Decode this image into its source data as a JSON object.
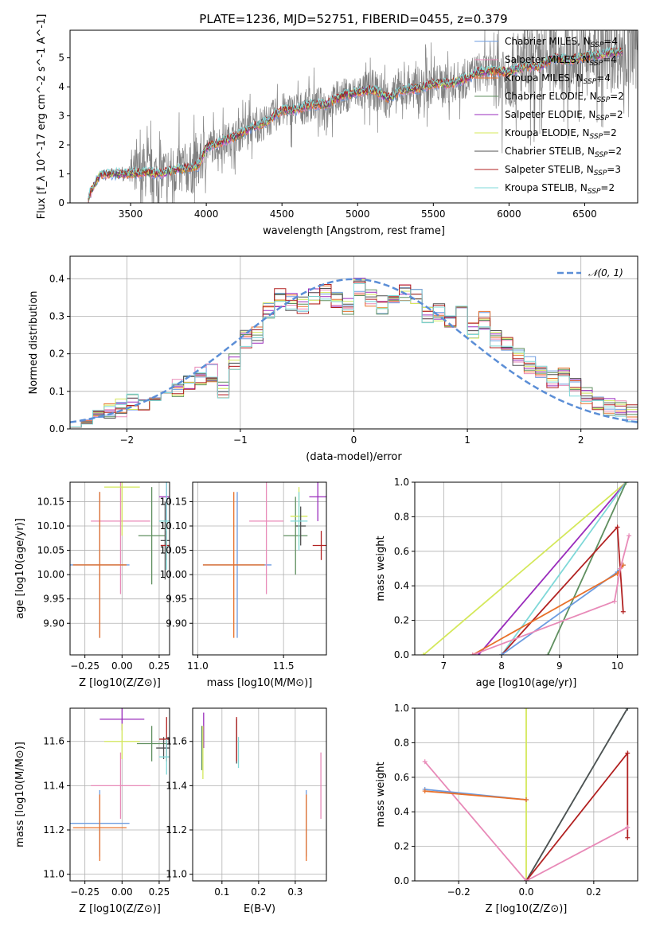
{
  "figure_title": "PLATE=1236, MJD=52751, FIBERID=0455, z=0.379",
  "colors": {
    "chabrier_miles": "#6d9ce0",
    "salpeter_miles": "#e88ab8",
    "kroupa_miles": "#e8702a",
    "chabrier_elodie": "#5f8f5f",
    "salpeter_elodie": "#9a2cbc",
    "kroupa_elodie": "#d4e85a",
    "chabrier_stelib": "#505050",
    "salpeter_stelib": "#b22222",
    "kroupa_stelib": "#7fd8d8",
    "data": "#808080",
    "normal": "#5b8ed6"
  },
  "chart_data": [
    {
      "id": "spectrum",
      "type": "line",
      "title": "PLATE=1236, MJD=52751, FIBERID=0455, z=0.379",
      "xlabel": "wavelength [Angstrom, rest frame]",
      "ylabel": "Flux [f_λ 10^-17 erg cm^-2 s^-1 A^-1]",
      "xlim": [
        3100,
        6850
      ],
      "ylim": [
        0,
        5.95
      ],
      "xticks": [
        3500,
        4000,
        4500,
        5000,
        5500,
        6000,
        6500
      ],
      "yticks": [
        0,
        1,
        2,
        3,
        4,
        5
      ],
      "legend_position": "right",
      "legend": [
        {
          "label": "Chabrier MILES, N_SSP=4",
          "color_key": "chabrier_miles"
        },
        {
          "label": "Salpeter MILES, N_SSP=4",
          "color_key": "salpeter_miles"
        },
        {
          "label": "Kroupa MILES, N_SSP=4",
          "color_key": "kroupa_miles"
        },
        {
          "label": "Chabrier ELODIE, N_SSP=2",
          "color_key": "chabrier_elodie"
        },
        {
          "label": "Salpeter ELODIE, N_SSP=2",
          "color_key": "salpeter_elodie"
        },
        {
          "label": "Kroupa ELODIE, N_SSP=2",
          "color_key": "kroupa_elodie"
        },
        {
          "label": "Chabrier STELIB, N_SSP=2",
          "color_key": "chabrier_stelib"
        },
        {
          "label": "Salpeter STELIB, N_SSP=3",
          "color_key": "salpeter_stelib"
        },
        {
          "label": "Kroupa STELIB, N_SSP=2",
          "color_key": "kroupa_stelib"
        }
      ],
      "model_continuum": {
        "x": [
          3220,
          3300,
          3400,
          3500,
          3600,
          3700,
          3800,
          3900,
          3950,
          4000,
          4100,
          4200,
          4300,
          4400,
          4500,
          4600,
          4700,
          4800,
          4900,
          5000,
          5100,
          5200,
          5300,
          5400,
          5500,
          5600,
          5700,
          5800,
          5900,
          6000,
          6100,
          6200,
          6300,
          6400,
          6500,
          6600,
          6700
        ],
        "y": [
          0.2,
          1.0,
          1.0,
          1.0,
          1.05,
          1.0,
          1.15,
          1.2,
          1.3,
          1.9,
          2.1,
          2.3,
          2.6,
          2.8,
          3.2,
          3.2,
          3.4,
          3.4,
          3.7,
          3.8,
          3.9,
          3.6,
          3.9,
          3.95,
          4.1,
          4.1,
          4.25,
          4.5,
          4.55,
          4.5,
          4.7,
          4.7,
          5.0,
          4.9,
          5.05,
          5.1,
          5.2
        ]
      }
    },
    {
      "id": "residual_hist",
      "type": "histogram",
      "xlabel": "(data-model)/error",
      "ylabel": "Normed distribution",
      "xlim": [
        -2.5,
        2.5
      ],
      "ylim": [
        0,
        0.46
      ],
      "xticks": [
        -2,
        -1,
        0,
        1,
        2
      ],
      "yticks": [
        0.0,
        0.1,
        0.2,
        0.3,
        0.4
      ],
      "grid": true,
      "legend": [
        {
          "label": "𝒩(0, 1)",
          "color_key": "normal"
        }
      ],
      "legend_position": "top-right",
      "bin_edges": [
        -2.5,
        -2.4,
        -2.3,
        -2.2,
        -2.1,
        -2.0,
        -1.9,
        -1.8,
        -1.7,
        -1.6,
        -1.5,
        -1.4,
        -1.3,
        -1.2,
        -1.1,
        -1.0,
        -0.9,
        -0.8,
        -0.7,
        -0.6,
        -0.5,
        -0.4,
        -0.3,
        -0.2,
        -0.1,
        0.0,
        0.1,
        0.2,
        0.3,
        0.4,
        0.5,
        0.6,
        0.7,
        0.8,
        0.9,
        1.0,
        1.1,
        1.2,
        1.3,
        1.4,
        1.5,
        1.6,
        1.7,
        1.8,
        1.9,
        2.0,
        2.1,
        2.2,
        2.3,
        2.4,
        2.5
      ],
      "representative_counts": [
        0.03,
        0.035,
        0.04,
        0.045,
        0.055,
        0.07,
        0.065,
        0.08,
        0.09,
        0.11,
        0.13,
        0.14,
        0.15,
        0.1,
        0.18,
        0.24,
        0.25,
        0.32,
        0.35,
        0.34,
        0.33,
        0.35,
        0.36,
        0.34,
        0.33,
        0.38,
        0.35,
        0.33,
        0.36,
        0.36,
        0.35,
        0.3,
        0.31,
        0.28,
        0.33,
        0.26,
        0.29,
        0.24,
        0.23,
        0.19,
        0.17,
        0.15,
        0.13,
        0.14,
        0.11,
        0.09,
        0.07,
        0.06,
        0.05,
        0.04
      ],
      "normal_curve": {
        "mu": 0,
        "sigma": 1
      }
    },
    {
      "id": "age_vs_Z",
      "type": "errorbar",
      "xlabel": "Z [log10(Z/Z⊙)]",
      "ylabel": "age  [log10(age/yr)]",
      "xlim": [
        -0.35,
        0.32
      ],
      "ylim": [
        9.835,
        10.19
      ],
      "xticks": [
        -0.25,
        0.0,
        0.25
      ],
      "yticks": [
        9.9,
        9.95,
        10.0,
        10.05,
        10.1,
        10.15
      ],
      "grid": true,
      "points": [
        {
          "key": "chabrier_miles",
          "x": -0.15,
          "y": 10.02,
          "xerr": 0.2,
          "yerr": 0.15
        },
        {
          "key": "salpeter_miles",
          "x": -0.01,
          "y": 10.11,
          "xerr": 0.2,
          "yerr": 0.15
        },
        {
          "key": "kroupa_miles",
          "x": -0.15,
          "y": 10.02,
          "xerr": 0.18,
          "yerr": 0.15
        },
        {
          "key": "chabrier_elodie",
          "x": 0.2,
          "y": 10.08,
          "xerr": 0.09,
          "yerr": 0.1
        },
        {
          "key": "salpeter_elodie",
          "x": 0.3,
          "y": 10.16,
          "xerr": 0.05,
          "yerr": 0.05
        },
        {
          "key": "kroupa_elodie",
          "x": 0.0,
          "y": 10.18,
          "xerr": 0.12,
          "yerr": 0.1
        },
        {
          "key": "chabrier_stelib",
          "x": 0.29,
          "y": 10.07,
          "xerr": 0.03,
          "yerr": 0.08
        },
        {
          "key": "salpeter_stelib",
          "x": 0.3,
          "y": 10.06,
          "xerr": 0.04,
          "yerr": 0.03
        },
        {
          "key": "kroupa_stelib",
          "x": 0.3,
          "y": 10.11,
          "xerr": 0.05,
          "yerr": 0.1
        }
      ]
    },
    {
      "id": "age_vs_mass",
      "type": "errorbar",
      "xlabel": "mass [log10(M/M⊙)]",
      "ylabel": "",
      "xlim": [
        10.97,
        11.75
      ],
      "ylim": [
        9.835,
        10.19
      ],
      "xticks": [
        11.0,
        11.5
      ],
      "yticks": [
        9.9,
        9.95,
        10.0,
        10.05,
        10.1,
        10.15
      ],
      "grid": true,
      "points": [
        {
          "key": "chabrier_miles",
          "x": 11.23,
          "y": 10.02,
          "xerr": 0.2,
          "yerr": 0.15
        },
        {
          "key": "salpeter_miles",
          "x": 11.4,
          "y": 10.11,
          "xerr": 0.1,
          "yerr": 0.15
        },
        {
          "key": "kroupa_miles",
          "x": 11.21,
          "y": 10.02,
          "xerr": 0.18,
          "yerr": 0.15
        },
        {
          "key": "chabrier_elodie",
          "x": 11.57,
          "y": 10.08,
          "xerr": 0.07,
          "yerr": 0.08
        },
        {
          "key": "salpeter_elodie",
          "x": 11.7,
          "y": 10.16,
          "xerr": 0.05,
          "yerr": 0.05
        },
        {
          "key": "kroupa_elodie",
          "x": 11.59,
          "y": 10.12,
          "xerr": 0.05,
          "yerr": 0.06
        },
        {
          "key": "chabrier_stelib",
          "x": 11.6,
          "y": 10.1,
          "xerr": 0.03,
          "yerr": 0.04
        },
        {
          "key": "salpeter_stelib",
          "x": 11.72,
          "y": 10.06,
          "xerr": 0.05,
          "yerr": 0.03
        },
        {
          "key": "kroupa_stelib",
          "x": 11.59,
          "y": 10.11,
          "xerr": 0.05,
          "yerr": 0.06
        }
      ]
    },
    {
      "id": "massweight_vs_age",
      "type": "line",
      "xlabel": "age  [log10(age/yr)]",
      "ylabel": "mass weight",
      "xlim": [
        6.5,
        10.35
      ],
      "ylim": [
        0,
        1.0
      ],
      "xticks": [
        7,
        8,
        9,
        10
      ],
      "yticks": [
        0.0,
        0.2,
        0.4,
        0.6,
        0.8,
        1.0
      ],
      "grid": true,
      "series": [
        {
          "key": "kroupa_elodie",
          "x": [
            6.65,
            10.15
          ],
          "y": [
            0.0,
            1.0
          ]
        },
        {
          "key": "salpeter_elodie",
          "x": [
            7.6,
            10.15
          ],
          "y": [
            0.0,
            1.0
          ]
        },
        {
          "key": "kroupa_stelib",
          "x": [
            8.0,
            10.15
          ],
          "y": [
            0.0,
            1.0
          ]
        },
        {
          "key": "chabrier_elodie",
          "x": [
            8.8,
            10.15
          ],
          "y": [
            0.0,
            1.0
          ]
        },
        {
          "key": "salpeter_stelib",
          "x": [
            8.0,
            10.0,
            10.1
          ],
          "y": [
            0.0,
            0.74,
            0.25
          ]
        },
        {
          "key": "chabrier_miles",
          "x": [
            8.0,
            10.0,
            10.1
          ],
          "y": [
            0.0,
            0.48,
            0.52
          ]
        },
        {
          "key": "kroupa_miles",
          "x": [
            7.5,
            10.0,
            10.1
          ],
          "y": [
            0.0,
            0.47,
            0.52
          ]
        },
        {
          "key": "salpeter_miles",
          "x": [
            7.5,
            9.95,
            10.05,
            10.2
          ],
          "y": [
            0.0,
            0.31,
            0.5,
            0.69
          ]
        }
      ]
    },
    {
      "id": "mass_vs_Z",
      "type": "errorbar",
      "xlabel": "Z [log10(Z/Z⊙)]",
      "ylabel": "mass [log10(M/M⊙)]",
      "xlim": [
        -0.35,
        0.32
      ],
      "ylim": [
        10.97,
        11.75
      ],
      "xticks": [
        -0.25,
        0.0,
        0.25
      ],
      "yticks": [
        11.0,
        11.2,
        11.4,
        11.6
      ],
      "grid": true,
      "points": [
        {
          "key": "chabrier_miles",
          "x": -0.15,
          "y": 11.23,
          "xerr": 0.2,
          "yerr": 0.15
        },
        {
          "key": "salpeter_miles",
          "x": -0.01,
          "y": 11.4,
          "xerr": 0.2,
          "yerr": 0.15
        },
        {
          "key": "kroupa_miles",
          "x": -0.15,
          "y": 11.21,
          "xerr": 0.18,
          "yerr": 0.15
        },
        {
          "key": "chabrier_elodie",
          "x": 0.2,
          "y": 11.59,
          "xerr": 0.1,
          "yerr": 0.08
        },
        {
          "key": "salpeter_elodie",
          "x": 0.0,
          "y": 11.7,
          "xerr": 0.15,
          "yerr": 0.05
        },
        {
          "key": "kroupa_elodie",
          "x": 0.0,
          "y": 11.6,
          "xerr": 0.12,
          "yerr": 0.08
        },
        {
          "key": "chabrier_stelib",
          "x": 0.28,
          "y": 11.57,
          "xerr": 0.05,
          "yerr": 0.05
        },
        {
          "key": "salpeter_stelib",
          "x": 0.3,
          "y": 11.61,
          "xerr": 0.05,
          "yerr": 0.1
        },
        {
          "key": "kroupa_stelib",
          "x": 0.3,
          "y": 11.53,
          "xerr": 0.05,
          "yerr": 0.08
        }
      ]
    },
    {
      "id": "mass_vs_ebv",
      "type": "errorbar",
      "xlabel": "E(B-V)",
      "ylabel": "",
      "xlim": [
        0.02,
        0.385
      ],
      "ylim": [
        10.97,
        11.75
      ],
      "xticks": [
        0.1,
        0.2,
        0.3
      ],
      "yticks": [
        11.0,
        11.2,
        11.4,
        11.6
      ],
      "grid": true,
      "points": [
        {
          "key": "chabrier_miles",
          "x": 0.33,
          "y": 11.23,
          "xerr": 0,
          "yerr": 0.15
        },
        {
          "key": "salpeter_miles",
          "x": 0.37,
          "y": 11.4,
          "xerr": 0,
          "yerr": 0.15
        },
        {
          "key": "kroupa_miles",
          "x": 0.33,
          "y": 11.21,
          "xerr": 0,
          "yerr": 0.15
        },
        {
          "key": "chabrier_elodie",
          "x": 0.045,
          "y": 11.57,
          "xerr": 0,
          "yerr": 0.1
        },
        {
          "key": "salpeter_elodie",
          "x": 0.05,
          "y": 11.65,
          "xerr": 0,
          "yerr": 0.08
        },
        {
          "key": "kroupa_elodie",
          "x": 0.048,
          "y": 11.55,
          "xerr": 0,
          "yerr": 0.12
        },
        {
          "key": "chabrier_stelib",
          "x": 0.14,
          "y": 11.6,
          "xerr": 0,
          "yerr": 0.1
        },
        {
          "key": "salpeter_stelib",
          "x": 0.14,
          "y": 11.61,
          "xerr": 0,
          "yerr": 0.1
        },
        {
          "key": "kroupa_stelib",
          "x": 0.145,
          "y": 11.55,
          "xerr": 0,
          "yerr": 0.07
        }
      ]
    },
    {
      "id": "massweight_vs_Z",
      "type": "line",
      "xlabel": "Z [log10(Z/Z⊙)]",
      "ylabel": "mass weight",
      "xlim": [
        -0.33,
        0.33
      ],
      "ylim": [
        0,
        1.0
      ],
      "xticks": [
        -0.2,
        0.0,
        0.2
      ],
      "yticks": [
        0.0,
        0.2,
        0.4,
        0.6,
        0.8,
        1.0
      ],
      "grid": true,
      "series": [
        {
          "key": "kroupa_elodie",
          "x": [
            0.0,
            0.0
          ],
          "y": [
            0.0,
            1.0
          ]
        },
        {
          "key": "kroupa_stelib",
          "x": [
            0.0,
            0.3
          ],
          "y": [
            0.0,
            1.0
          ]
        },
        {
          "key": "chabrier_stelib",
          "x": [
            0.0,
            0.3
          ],
          "y": [
            0.0,
            1.0
          ]
        },
        {
          "key": "salpeter_stelib",
          "x": [
            0.0,
            0.3,
            0.3
          ],
          "y": [
            0.0,
            0.74,
            0.25
          ]
        },
        {
          "key": "salpeter_miles",
          "x": [
            -0.3,
            0.0,
            0.3
          ],
          "y": [
            0.69,
            0.0,
            0.31
          ]
        },
        {
          "key": "chabrier_miles",
          "x": [
            -0.3,
            0.0
          ],
          "y": [
            0.53,
            0.47
          ]
        },
        {
          "key": "kroupa_miles",
          "x": [
            -0.3,
            0.0
          ],
          "y": [
            0.52,
            0.47
          ]
        }
      ]
    }
  ]
}
